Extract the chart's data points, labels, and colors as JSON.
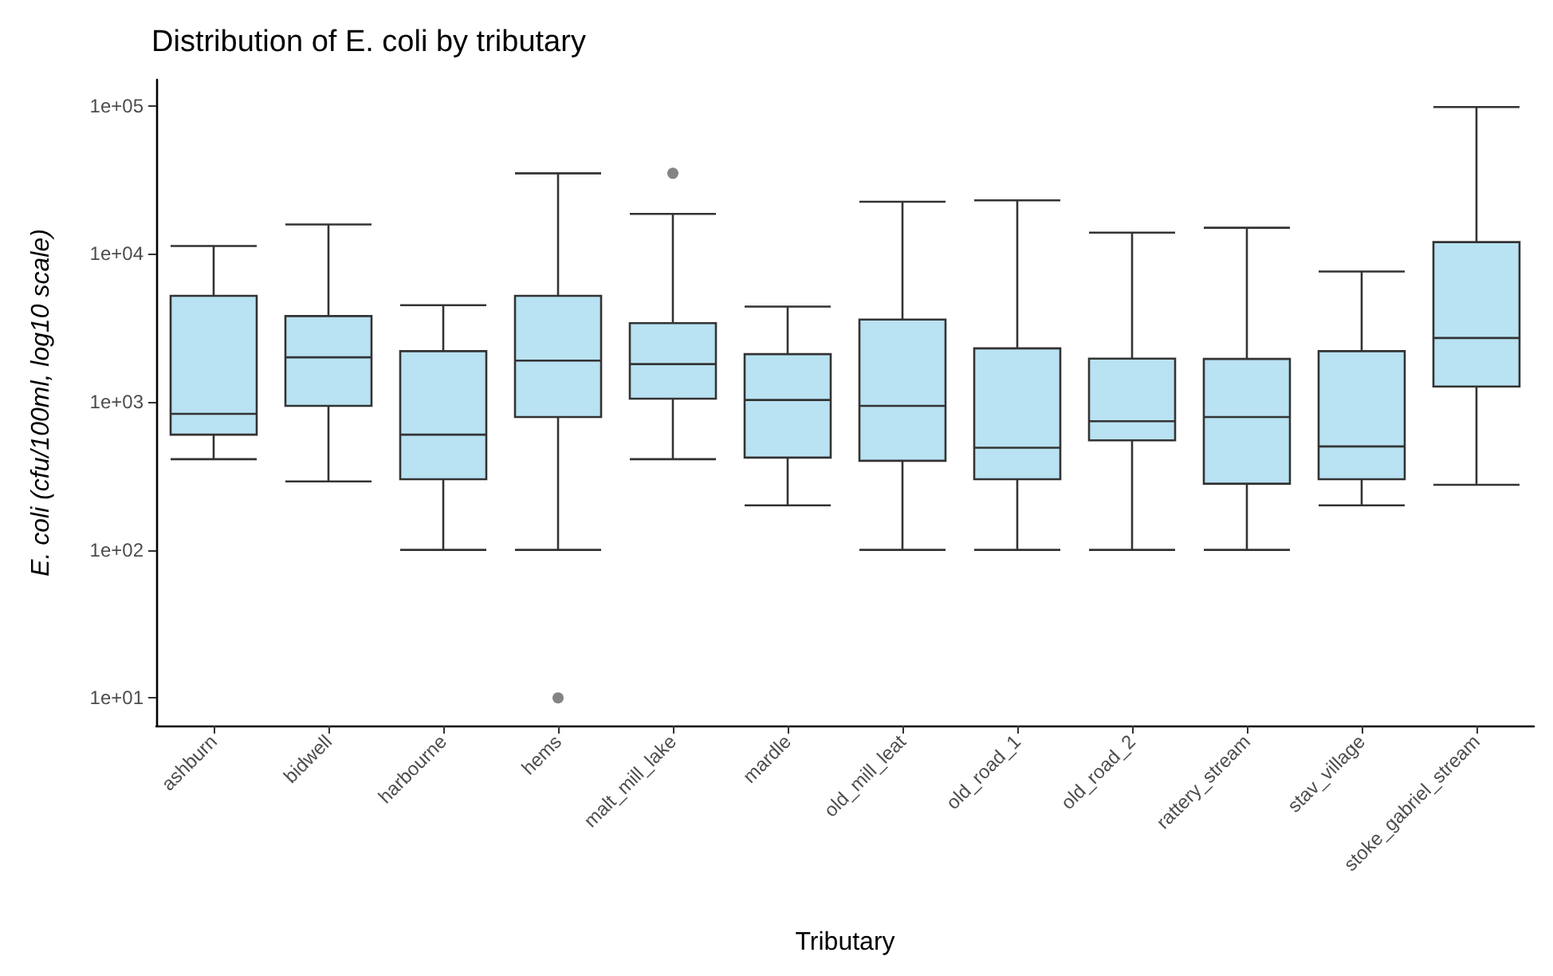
{
  "chart_data": {
    "type": "box",
    "title": "Distribution of E. coli by tributary",
    "xlabel": "Tributary",
    "ylabel": "E. coli (cfu/100ml, log10 scale)",
    "log": true,
    "grid": false,
    "color": "#b9e2f2",
    "categories": [
      "ashburn",
      "bidwell",
      "harbourne",
      "hems",
      "malt_mill_lake",
      "mardle",
      "old_mill_leat",
      "old_road_1",
      "old_road_2",
      "rattery_stream",
      "stav_village",
      "stoke_gabriel_stream"
    ],
    "ylim": [
      6.5,
      150000
    ],
    "yticks": [
      {
        "value": 10,
        "label": "1e+01"
      },
      {
        "value": 100,
        "label": "1e+02"
      },
      {
        "value": 1000,
        "label": "1e+03"
      },
      {
        "value": 10000,
        "label": "1e+04"
      },
      {
        "value": 100000,
        "label": "1e+05"
      }
    ],
    "boxes": [
      {
        "low": 410,
        "q1": 600,
        "median": 830,
        "q3": 5200,
        "high": 11300
      },
      {
        "low": 290,
        "q1": 940,
        "median": 2000,
        "q3": 3800,
        "high": 15800
      },
      {
        "low": 100,
        "q1": 300,
        "median": 600,
        "q3": 2200,
        "high": 4500
      },
      {
        "low": 100,
        "q1": 790,
        "median": 1900,
        "q3": 5200,
        "high": 35000,
        "outliers": [
          10
        ]
      },
      {
        "low": 410,
        "q1": 1050,
        "median": 1800,
        "q3": 3400,
        "high": 18600,
        "outliers": [
          35000
        ]
      },
      {
        "low": 200,
        "q1": 420,
        "median": 1030,
        "q3": 2100,
        "high": 4400
      },
      {
        "low": 100,
        "q1": 400,
        "median": 940,
        "q3": 3600,
        "high": 22500
      },
      {
        "low": 100,
        "q1": 300,
        "median": 490,
        "q3": 2300,
        "high": 23000
      },
      {
        "low": 100,
        "q1": 550,
        "median": 740,
        "q3": 1960,
        "high": 13900
      },
      {
        "low": 100,
        "q1": 280,
        "median": 790,
        "q3": 1950,
        "high": 15000
      },
      {
        "low": 200,
        "q1": 300,
        "median": 500,
        "q3": 2200,
        "high": 7600
      },
      {
        "low": 275,
        "q1": 1270,
        "median": 2700,
        "q3": 12000,
        "high": 98000
      }
    ]
  }
}
